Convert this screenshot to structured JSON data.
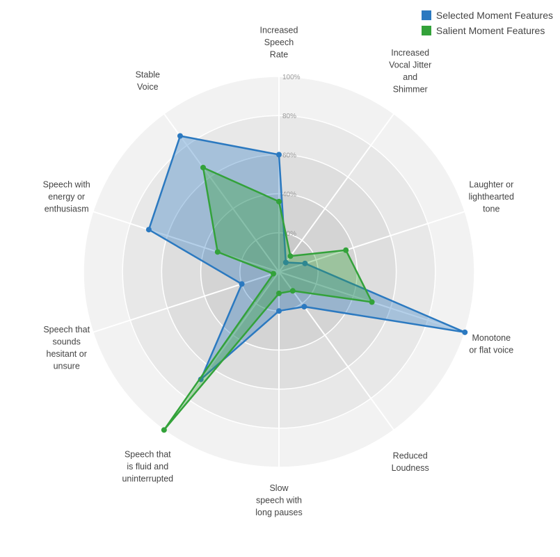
{
  "chart_data": {
    "type": "radar",
    "axes": [
      [
        "Increased",
        "Speech",
        "Rate"
      ],
      [
        "Increased",
        "Vocal Jitter",
        "and",
        "Shimmer"
      ],
      [
        "Laughter or",
        "lighthearted",
        "tone"
      ],
      [
        "Monotone",
        "or flat voice"
      ],
      [
        "Reduced",
        "Loudness"
      ],
      [
        "Slow",
        "speech with",
        "long pauses"
      ],
      [
        "Speech that",
        "is fluid and",
        "uninterrupted"
      ],
      [
        "Speech that",
        "sounds",
        "hesitant or",
        "unsure"
      ],
      [
        "Speech with",
        "energy or",
        "enthusiasm"
      ],
      [
        "Stable",
        "Voice"
      ]
    ],
    "rlim": [
      0,
      100
    ],
    "ticks": [
      "20%",
      "40%",
      "60%",
      "80%",
      "100%"
    ],
    "series": [
      {
        "name": "Selected Moment Features",
        "color": "#2b79c0",
        "values": [
          60,
          6,
          14,
          100,
          22,
          20,
          68,
          20,
          70,
          86
        ]
      },
      {
        "name": "Salient Moment Features",
        "color": "#33a23a",
        "values": [
          36,
          10,
          36,
          50,
          12,
          11,
          100,
          3,
          33,
          66
        ]
      }
    ]
  }
}
